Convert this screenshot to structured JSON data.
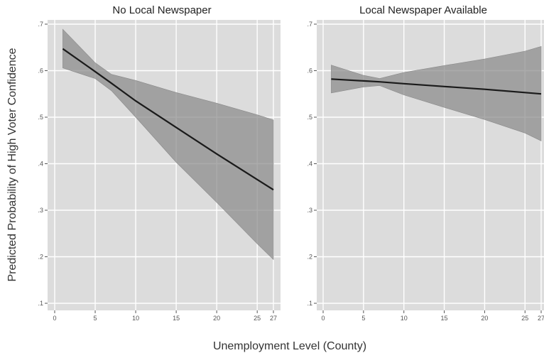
{
  "chart_data": {
    "ylabel": "Predicted Probability of High Voter Confidence",
    "xlabel": "Unemployment Level (County)",
    "ylim": [
      0.1,
      0.7
    ],
    "yticks": [
      ".1",
      ".2",
      ".3",
      ".4",
      ".5",
      ".6",
      ".7"
    ],
    "yticks_values": [
      0.1,
      0.2,
      0.3,
      0.4,
      0.5,
      0.6,
      0.7
    ],
    "xticks": [
      "0",
      "5",
      "10",
      "15",
      "20",
      "25",
      "27"
    ],
    "xticks_values": [
      0,
      5,
      10,
      15,
      20,
      25,
      27
    ],
    "xlim": [
      0,
      27
    ],
    "grid": true,
    "panels": [
      {
        "type": "line",
        "title": "No Local Newspaper",
        "x": [
          1,
          5,
          7,
          10,
          15,
          20,
          25,
          27
        ],
        "y": [
          0.647,
          0.598,
          0.573,
          0.535,
          0.478,
          0.421,
          0.366,
          0.344
        ],
        "lower": [
          0.606,
          0.583,
          0.557,
          0.5,
          0.403,
          0.317,
          0.228,
          0.194
        ],
        "upper": [
          0.689,
          0.617,
          0.592,
          0.579,
          0.553,
          0.53,
          0.505,
          0.494
        ]
      },
      {
        "type": "line",
        "title": "Local Newspaper Available",
        "x": [
          1,
          5,
          7,
          10,
          15,
          20,
          25,
          27
        ],
        "y": [
          0.582,
          0.578,
          0.576,
          0.572,
          0.566,
          0.56,
          0.553,
          0.55
        ],
        "lower": [
          0.552,
          0.565,
          0.568,
          0.548,
          0.521,
          0.495,
          0.466,
          0.449
        ],
        "upper": [
          0.612,
          0.59,
          0.583,
          0.596,
          0.611,
          0.625,
          0.642,
          0.652
        ]
      }
    ]
  }
}
